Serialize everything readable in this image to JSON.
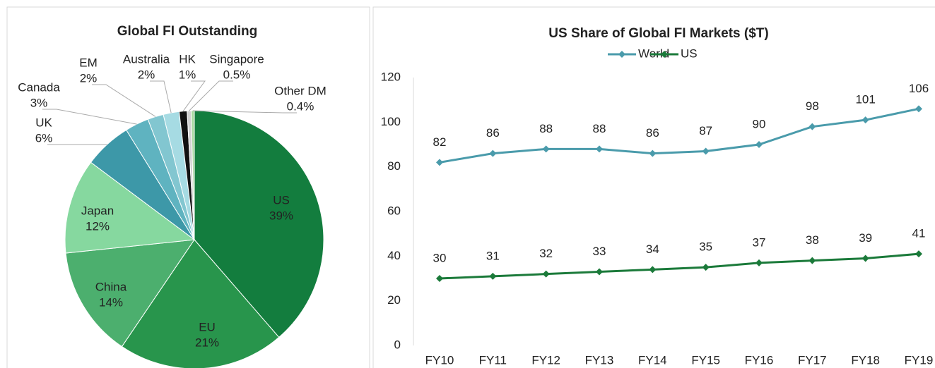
{
  "chart_data": [
    {
      "type": "pie",
      "title": "Global FI Outstanding",
      "categories": [
        "US",
        "EU",
        "China",
        "Japan",
        "UK",
        "Canada",
        "EM",
        "Australia",
        "HK",
        "Singapore",
        "Other DM"
      ],
      "values": [
        39,
        21,
        14,
        12,
        6,
        3,
        2,
        2,
        1,
        0.5,
        0.4
      ],
      "value_labels": [
        "39%",
        "21%",
        "14%",
        "12%",
        "6%",
        "3%",
        "2%",
        "2%",
        "1%",
        "0.5%",
        "0.4%"
      ],
      "colors": [
        "#137d3e",
        "#28954c",
        "#4caf6e",
        "#86d89f",
        "#3d98a8",
        "#5fb3c0",
        "#82c6d0",
        "#a6dbe3",
        "#111111",
        "#d0d0d0",
        "#a8d8a0"
      ]
    },
    {
      "type": "line",
      "title": "US Share of Global FI Markets ($T)",
      "categories": [
        "FY10",
        "FY11",
        "FY12",
        "FY13",
        "FY14",
        "FY15",
        "FY16",
        "FY17",
        "FY18",
        "FY19"
      ],
      "series": [
        {
          "name": "World",
          "color": "#4a9bab",
          "values": [
            82,
            86,
            88,
            88,
            86,
            87,
            90,
            98,
            101,
            106
          ]
        },
        {
          "name": "US",
          "color": "#1b7a3a",
          "values": [
            30,
            31,
            32,
            33,
            34,
            35,
            37,
            38,
            39,
            41
          ]
        }
      ],
      "ylim": [
        0,
        120
      ],
      "yticks": [
        0,
        20,
        40,
        60,
        80,
        100,
        120
      ],
      "legend": "top"
    }
  ]
}
